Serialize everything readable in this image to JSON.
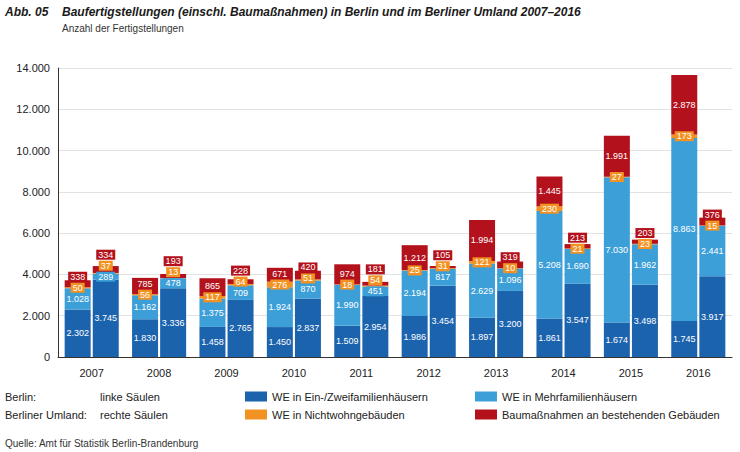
{
  "chart_data": {
    "type": "bar",
    "figure_label": "Abb. 05",
    "title": "Baufertigstellungen (einschl. Baumaßnahmen) in Berlin und im Berliner Umland 2007–2016",
    "subtitle": "Anzahl der Fertigstellungen",
    "source": "Quelle: Amt für Statistik Berlin-Brandenburg",
    "categories": [
      "2007",
      "2008",
      "2009",
      "2010",
      "2011",
      "2012",
      "2013",
      "2014",
      "2015",
      "2016"
    ],
    "ylim": [
      0,
      14000
    ],
    "yticks": [
      0,
      {
        "value": 2000,
        "label": "2.000"
      },
      {
        "value": 4000,
        "label": "4.000"
      },
      {
        "value": 6000,
        "label": "6.000"
      },
      {
        "value": 8000,
        "label": "8.000"
      },
      {
        "value": 10000,
        "label": "10.000"
      },
      {
        "value": 12000,
        "label": "12.000"
      },
      {
        "value": 14000,
        "label": "14.000"
      }
    ],
    "grid": true,
    "stacked": true,
    "data_labels": true,
    "legend": "bottom",
    "groups": [
      {
        "name": "Berlin:",
        "label": "linke Säulen",
        "series": [
          {
            "name": "WE in Ein-/Zweifamilienhäusern",
            "color": "#1c63ae",
            "values": [
              2302,
              1830,
              1458,
              1450,
              1509,
              1986,
              1897,
              1861,
              1674,
              1745
            ],
            "value_labels": [
              "2.302",
              "1.830",
              "1.458",
              "1.450",
              "1.509",
              "1.986",
              "1.897",
              "1.861",
              "1.674",
              "1.745"
            ]
          },
          {
            "name": "WE in Mehrfamilienhäusern",
            "color": "#3d9fd8",
            "values": [
              1028,
              1162,
              1375,
              1924,
              1990,
              2194,
              2629,
              5208,
              7030,
              8863
            ],
            "value_labels": [
              "1.028",
              "1.162",
              "1.375",
              "1.924",
              "1.990",
              "2.194",
              "2.629",
              "5.208",
              "7.030",
              "8.863"
            ]
          },
          {
            "name": "WE in Nichtwohngebäuden",
            "color": "#f29222",
            "values": [
              50,
              56,
              117,
              276,
              18,
              25,
              121,
              230,
              27,
              173
            ],
            "value_labels": [
              "50",
              "56",
              "117",
              "276",
              "18",
              "25",
              "121",
              "230",
              "27",
              "173"
            ]
          },
          {
            "name": "Baumaßnahmen an bestehenden Gebäuden",
            "color": "#b3121c",
            "values": [
              338,
              785,
              865,
              671,
              974,
              1212,
              1994,
              1445,
              1991,
              2878
            ],
            "value_labels": [
              "338",
              "785",
              "865",
              "671",
              "974",
              "1.212",
              "1.994",
              "1.445",
              "1.991",
              "2.878"
            ]
          }
        ]
      },
      {
        "name": "Berliner Umland:",
        "label": "rechte Säulen",
        "series": [
          {
            "name": "WE in Ein-/Zweifamilienhäusern",
            "color": "#1c63ae",
            "values": [
              3745,
              3336,
              2765,
              2837,
              2954,
              3454,
              3200,
              3547,
              3498,
              3917
            ],
            "value_labels": [
              "3.745",
              "3.336",
              "2.765",
              "2.837",
              "2.954",
              "3.454",
              "3.200",
              "3.547",
              "3.498",
              "3.917"
            ]
          },
          {
            "name": "WE in Mehrfamilienhäusern",
            "color": "#3d9fd8",
            "values": [
              289,
              478,
              709,
              870,
              451,
              817,
              1096,
              1690,
              1962,
              2441
            ],
            "value_labels": [
              "289",
              "478",
              "709",
              "870",
              "451",
              "817",
              "1.096",
              "1.690",
              "1.962",
              "2.441"
            ]
          },
          {
            "name": "WE in Nichtwohngebäuden",
            "color": "#f29222",
            "values": [
              37,
              13,
              64,
              51,
              54,
              31,
              10,
              21,
              23,
              15
            ],
            "value_labels": [
              "37",
              "13",
              "64",
              "51",
              "54",
              "31",
              "10",
              "21",
              "23",
              "15"
            ]
          },
          {
            "name": "Baumaßnahmen an bestehenden Gebäuden",
            "color": "#b3121c",
            "values": [
              334,
              193,
              228,
              420,
              181,
              105,
              319,
              213,
              203,
              376
            ],
            "value_labels": [
              "334",
              "193",
              "228",
              "420",
              "181",
              "105",
              "319",
              "213",
              "203",
              "376"
            ]
          }
        ]
      }
    ]
  }
}
